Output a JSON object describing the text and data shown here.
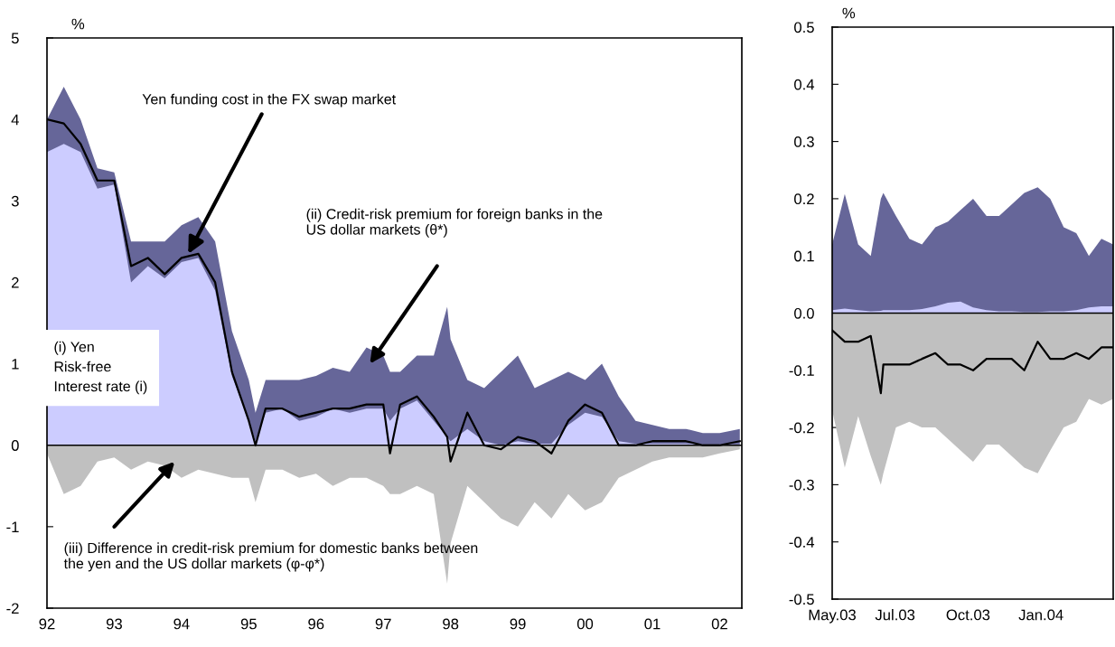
{
  "chart_data": [
    {
      "type": "area",
      "ylabel": "%",
      "grid": false,
      "x": [
        1992.0,
        1992.25,
        1992.5,
        1992.75,
        1993.0,
        1993.25,
        1993.5,
        1993.75,
        1994.0,
        1994.25,
        1994.5,
        1994.75,
        1995.0,
        1995.1,
        1995.25,
        1995.5,
        1995.75,
        1996.0,
        1996.25,
        1996.5,
        1996.75,
        1997.0,
        1997.1,
        1997.25,
        1997.5,
        1997.75,
        1997.95,
        1998.0,
        1998.25,
        1998.5,
        1998.75,
        1999.0,
        1999.25,
        1999.5,
        1999.75,
        2000.0,
        2000.25,
        2000.5,
        2000.75,
        2001.0,
        2001.25,
        2001.5,
        2001.75,
        2002.0,
        2002.3
      ],
      "series": [
        {
          "color": "#666699",
          "values": [
            4.0,
            4.4,
            4.0,
            3.4,
            3.35,
            2.5,
            2.5,
            2.5,
            2.7,
            2.8,
            2.5,
            1.4,
            0.8,
            0.4,
            0.8,
            0.8,
            0.8,
            0.85,
            0.95,
            0.9,
            1.2,
            1.1,
            0.9,
            0.9,
            1.1,
            1.1,
            1.7,
            1.3,
            0.8,
            0.7,
            0.9,
            1.1,
            0.7,
            0.8,
            0.9,
            0.8,
            1.0,
            0.6,
            0.3,
            0.25,
            0.2,
            0.2,
            0.15,
            0.15,
            0.2
          ]
        },
        {
          "color": "#ccccff",
          "values": [
            3.6,
            3.7,
            3.6,
            3.15,
            3.2,
            2.0,
            2.2,
            2.05,
            2.25,
            2.3,
            1.9,
            0.85,
            0.3,
            0.05,
            0.4,
            0.45,
            0.3,
            0.35,
            0.45,
            0.4,
            0.45,
            0.45,
            0.3,
            0.45,
            0.55,
            0.3,
            0.1,
            0.05,
            0.2,
            0.05,
            0.0,
            0.05,
            0.02,
            0.02,
            0.25,
            0.4,
            0.35,
            0.05,
            0.02,
            0.02,
            0.02,
            0.02,
            0.01,
            0.01,
            0.01
          ]
        },
        {
          "color": "#c0c0c0",
          "values": [
            -0.1,
            -0.6,
            -0.5,
            -0.2,
            -0.15,
            -0.3,
            -0.2,
            -0.25,
            -0.4,
            -0.3,
            -0.35,
            -0.4,
            -0.4,
            -0.7,
            -0.3,
            -0.3,
            -0.4,
            -0.35,
            -0.5,
            -0.4,
            -0.4,
            -0.5,
            -0.6,
            -0.6,
            -0.5,
            -0.6,
            -1.7,
            -1.2,
            -0.5,
            -0.7,
            -0.9,
            -1.0,
            -0.7,
            -0.9,
            -0.6,
            -0.8,
            -0.7,
            -0.4,
            -0.3,
            -0.2,
            -0.15,
            -0.15,
            -0.15,
            -0.1,
            -0.05
          ]
        },
        {
          "type": "line",
          "color": "#000000",
          "values": [
            4.0,
            3.95,
            3.7,
            3.25,
            3.25,
            2.2,
            2.3,
            2.1,
            2.3,
            2.35,
            2.0,
            0.9,
            0.3,
            0.0,
            0.45,
            0.45,
            0.35,
            0.4,
            0.45,
            0.45,
            0.5,
            0.5,
            -0.1,
            0.5,
            0.6,
            0.35,
            0.1,
            -0.2,
            0.4,
            0.0,
            -0.05,
            0.1,
            0.05,
            -0.1,
            0.3,
            0.5,
            0.4,
            0.0,
            0.0,
            0.05,
            0.05,
            0.05,
            0.0,
            0.0,
            0.05
          ]
        }
      ],
      "xlim": [
        1992,
        2002.33
      ],
      "xticks": [
        {
          "value": 1992,
          "label": "92"
        },
        {
          "value": 1993,
          "label": "93"
        },
        {
          "value": 1994,
          "label": "94"
        },
        {
          "value": 1995,
          "label": "95"
        },
        {
          "value": 1996,
          "label": "96"
        },
        {
          "value": 1997,
          "label": "97"
        },
        {
          "value": 1998,
          "label": "98"
        },
        {
          "value": 1999,
          "label": "99"
        },
        {
          "value": 2000,
          "label": "00"
        },
        {
          "value": 2001,
          "label": "01"
        },
        {
          "value": 2002,
          "label": "02"
        }
      ],
      "ylim": [
        -2,
        5
      ],
      "yticks": [
        -2,
        -1,
        0,
        1,
        2,
        3,
        4,
        5
      ],
      "ref_lines": [
        {
          "axis": "y",
          "value": 0,
          "color": "#000000"
        }
      ],
      "annotations": [
        {
          "text": "Yen funding cost in the FX swap market",
          "x": 1994.1,
          "y": 2.35
        },
        "(ii) Credit-risk premium for foreign banks in the\nUS dollar markets (θ*)",
        "(iii) Difference in credit-risk premium for domestic banks between\nthe yen and the US dollar markets (φ-φ*)",
        "(i) Yen\nRisk-free\nInterest rate (i)"
      ]
    },
    {
      "type": "area",
      "ylabel": "%",
      "grid": false,
      "x": [
        "2003-05-01",
        "2003-05-16",
        "2003-06-01",
        "2003-06-16",
        "2003-06-28",
        "2003-07-01",
        "2003-07-16",
        "2003-08-01",
        "2003-08-16",
        "2003-09-01",
        "2003-09-16",
        "2003-10-01",
        "2003-10-16",
        "2003-11-01",
        "2003-11-16",
        "2003-12-01",
        "2003-12-16",
        "2004-01-01",
        "2004-01-16",
        "2004-02-01",
        "2004-02-16",
        "2004-03-02",
        "2004-03-17",
        "2004-03-31"
      ],
      "series": [
        {
          "color": "#666699",
          "values": [
            0.12,
            0.208,
            0.12,
            0.1,
            0.2,
            0.21,
            0.17,
            0.13,
            0.12,
            0.15,
            0.16,
            0.18,
            0.2,
            0.17,
            0.17,
            0.19,
            0.21,
            0.22,
            0.2,
            0.15,
            0.14,
            0.1,
            0.13,
            0.12
          ]
        },
        {
          "color": "#ccccff",
          "values": [
            0.005,
            0.008,
            0.005,
            0.003,
            0.004,
            0.005,
            0.005,
            0.005,
            0.007,
            0.012,
            0.018,
            0.02,
            0.01,
            0.005,
            0.003,
            0.003,
            0.002,
            0.002,
            0.003,
            0.003,
            0.005,
            0.01,
            0.012,
            0.012
          ]
        },
        {
          "color": "#c0c0c0",
          "values": [
            -0.17,
            -0.27,
            -0.18,
            -0.25,
            -0.3,
            -0.28,
            -0.2,
            -0.19,
            -0.2,
            -0.2,
            -0.22,
            -0.24,
            -0.26,
            -0.23,
            -0.23,
            -0.25,
            -0.27,
            -0.28,
            -0.24,
            -0.2,
            -0.19,
            -0.15,
            -0.16,
            -0.15
          ]
        },
        {
          "type": "line",
          "color": "#000000",
          "values": [
            -0.03,
            -0.05,
            -0.05,
            -0.04,
            -0.14,
            -0.09,
            -0.09,
            -0.09,
            -0.08,
            -0.07,
            -0.09,
            -0.09,
            -0.1,
            -0.08,
            -0.08,
            -0.08,
            -0.1,
            -0.05,
            -0.08,
            -0.08,
            -0.07,
            -0.08,
            -0.06,
            -0.06
          ]
        }
      ],
      "xlim": [
        "2003-05-01",
        "2004-03-31"
      ],
      "xticks": [
        {
          "value": "2003-05-01",
          "label": "May.03"
        },
        {
          "value": "2003-07-15",
          "label": "Jul.03"
        },
        {
          "value": "2003-10-10",
          "label": "Oct.03"
        },
        {
          "value": "2004-01-05",
          "label": "Jan.04"
        }
      ],
      "ylim": [
        -0.5,
        0.5
      ],
      "yticks": [
        -0.5,
        -0.4,
        -0.3,
        -0.2,
        -0.1,
        {
          "value": 0,
          "label": "0.0"
        },
        0.1,
        0.2,
        0.3,
        0.4,
        0.5
      ],
      "ref_lines": [
        {
          "axis": "y",
          "value": 0,
          "color": "#000000"
        }
      ]
    }
  ]
}
